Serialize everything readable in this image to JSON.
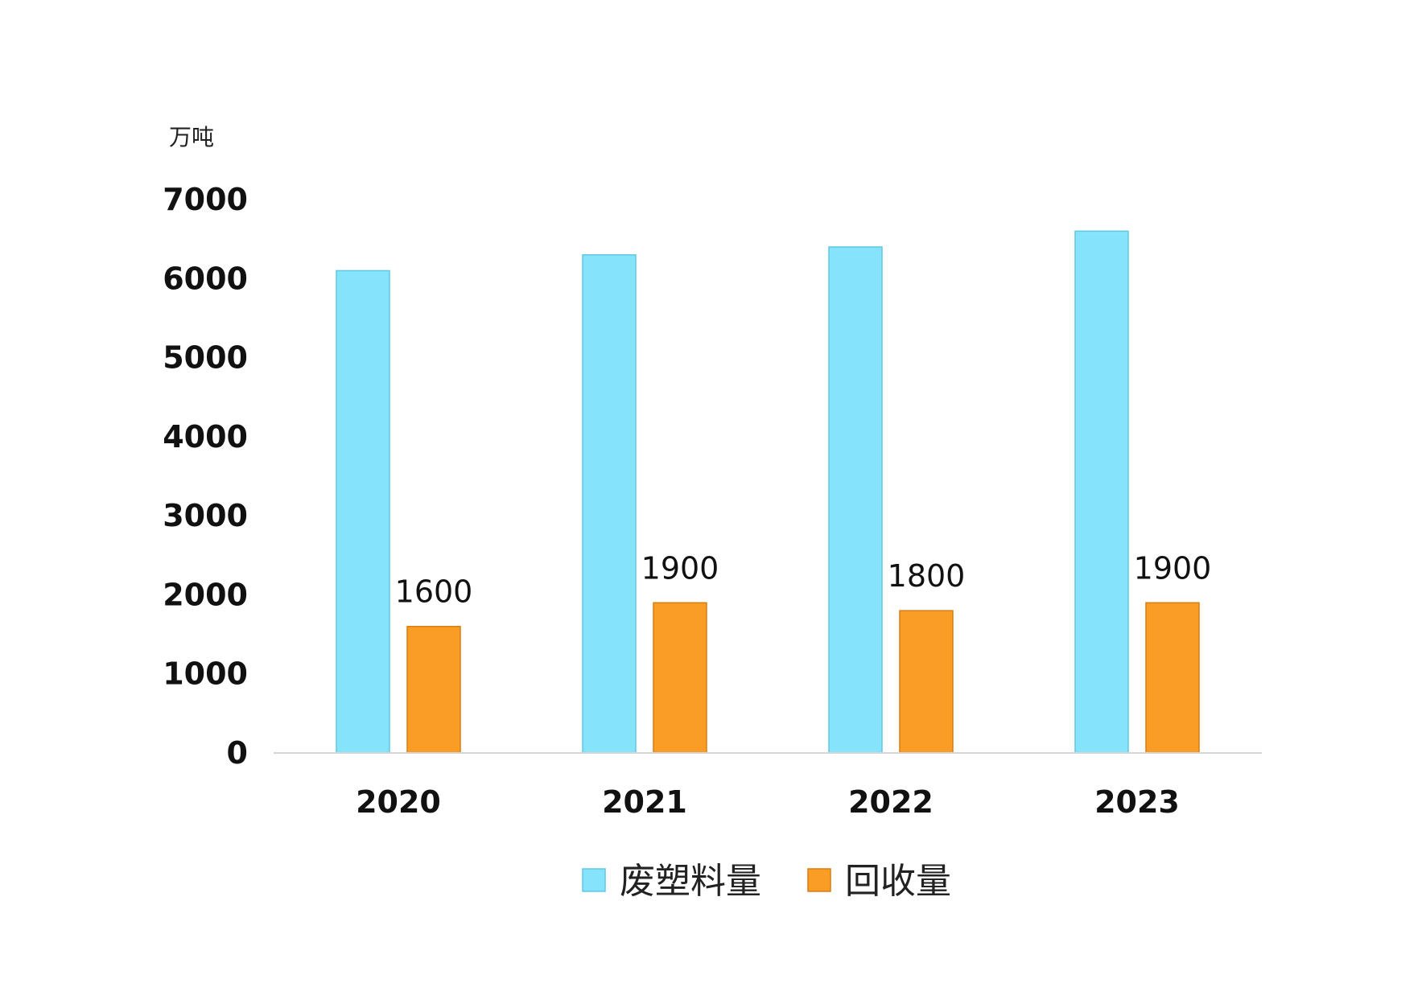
{
  "chart_data": {
    "type": "bar",
    "unit_label": "万吨",
    "categories": [
      "2020",
      "2021",
      "2022",
      "2023"
    ],
    "series": [
      {
        "name": "废塑料量",
        "values": [
          6100,
          6300,
          6400,
          6600
        ],
        "color": "#85e3fb",
        "show_labels": false
      },
      {
        "name": "回收量",
        "values": [
          1600,
          1900,
          1800,
          1900
        ],
        "color": "#f99d26",
        "show_labels": true
      }
    ],
    "ylim": [
      0,
      7000
    ],
    "yticks": [
      0,
      1000,
      2000,
      3000,
      4000,
      5000,
      6000,
      7000
    ],
    "grid": false,
    "legend_position": "bottom"
  }
}
